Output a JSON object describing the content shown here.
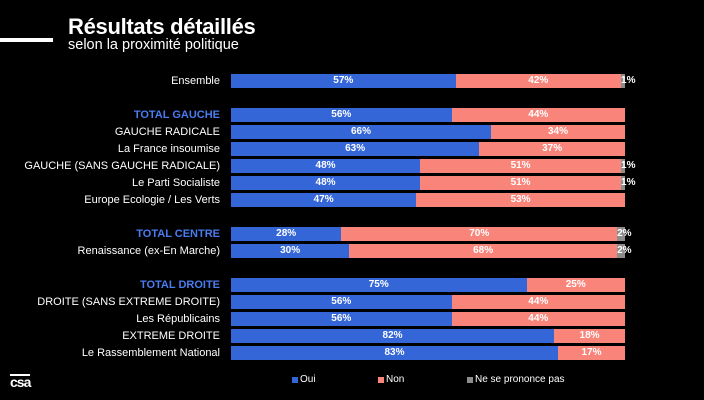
{
  "header": {
    "title": "Résultats détaillés",
    "subtitle": "selon la proximité politique"
  },
  "logo": "csa",
  "colors": {
    "oui": "#3466d8",
    "non": "#f8847a",
    "nsp": "#8c8c8c",
    "group": "#4a7cf0"
  },
  "chart_data": {
    "type": "bar",
    "orientation": "horizontal-stacked-100",
    "legend_position": "bottom",
    "series_names": [
      "Oui",
      "Non",
      "Ne se prononce pas"
    ],
    "rows": [
      {
        "label": "Ensemble",
        "group": false,
        "values": [
          57,
          42,
          1
        ],
        "gap_before": false
      },
      {
        "label": "TOTAL GAUCHE",
        "group": true,
        "values": [
          56,
          44,
          0
        ],
        "gap_before": true
      },
      {
        "label": "GAUCHE RADICALE",
        "group": false,
        "values": [
          66,
          34,
          0
        ],
        "gap_before": false
      },
      {
        "label": "La France insoumise",
        "group": false,
        "values": [
          63,
          37,
          0
        ],
        "gap_before": false
      },
      {
        "label": "GAUCHE (SANS GAUCHE RADICALE)",
        "group": false,
        "values": [
          48,
          51,
          1
        ],
        "gap_before": false
      },
      {
        "label": "Le Parti Socialiste",
        "group": false,
        "values": [
          48,
          51,
          1
        ],
        "gap_before": false
      },
      {
        "label": "Europe Ecologie / Les Verts",
        "group": false,
        "values": [
          47,
          53,
          0
        ],
        "gap_before": false
      },
      {
        "label": "TOTAL CENTRE",
        "group": true,
        "values": [
          28,
          70,
          2
        ],
        "gap_before": true
      },
      {
        "label": "Renaissance (ex-En Marche)",
        "group": false,
        "values": [
          30,
          68,
          2
        ],
        "gap_before": false
      },
      {
        "label": "TOTAL DROITE",
        "group": true,
        "values": [
          75,
          25,
          0
        ],
        "gap_before": true
      },
      {
        "label": "DROITE (SANS EXTREME DROITE)",
        "group": false,
        "values": [
          56,
          44,
          0
        ],
        "gap_before": false
      },
      {
        "label": "Les Républicains",
        "group": false,
        "values": [
          56,
          44,
          0
        ],
        "gap_before": false
      },
      {
        "label": "EXTREME DROITE",
        "group": false,
        "values": [
          82,
          18,
          0
        ],
        "gap_before": false
      },
      {
        "label": "Le Rassemblement National",
        "group": false,
        "values": [
          83,
          17,
          0
        ],
        "gap_before": false
      }
    ]
  }
}
